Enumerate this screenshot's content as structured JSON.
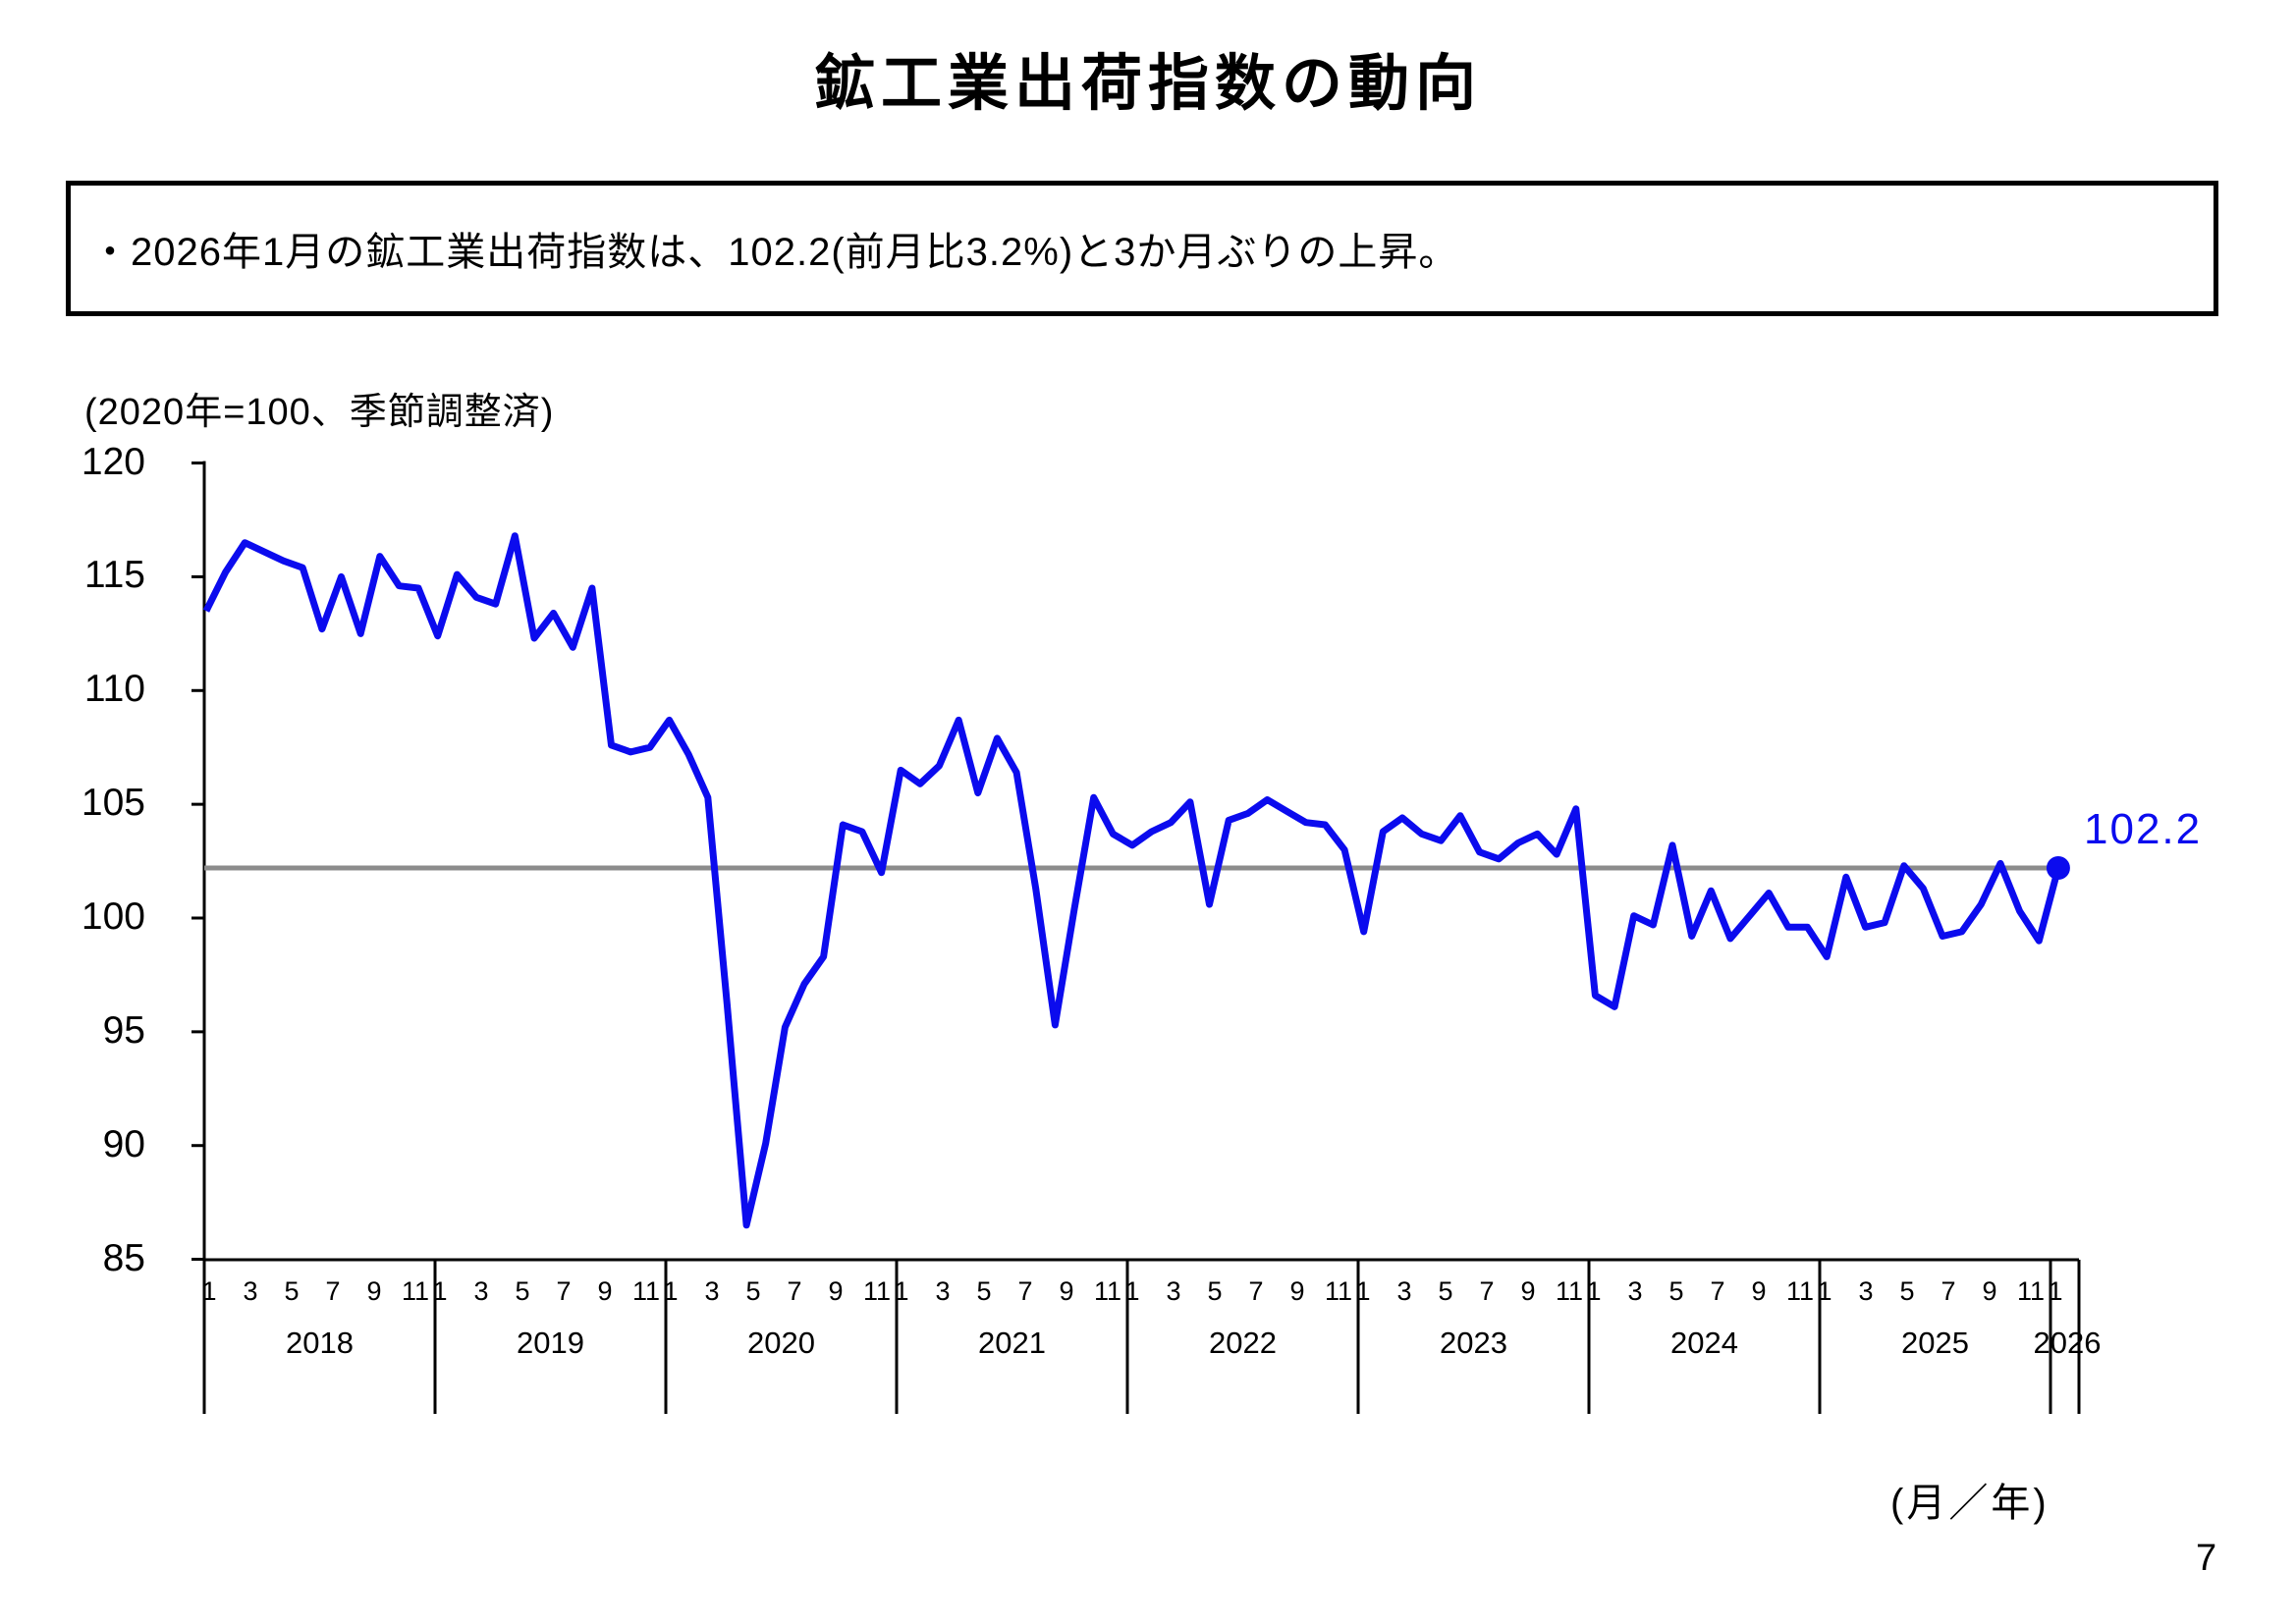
{
  "page": {
    "title": "鉱工業出荷指数の動向",
    "page_number": "7"
  },
  "summary_box": {
    "text": "・2026年1月の鉱工業出荷指数は、102.2(前月比3.2%)と3か月ぶりの上昇。"
  },
  "chart_data": {
    "type": "line",
    "unit_note": "(2020年=100、季節調整済)",
    "x_axis_note": "(月／年)",
    "ylim": [
      85,
      120
    ],
    "yticks": [
      120,
      115,
      110,
      105,
      100,
      95,
      90,
      85
    ],
    "grid": false,
    "month_tick_labels": [
      "1",
      "3",
      "5",
      "7",
      "9",
      "11"
    ],
    "reference_line_value": 102.2,
    "line_color": "#0b0bee",
    "reference_line_color": "#8c8c8c",
    "annotation": {
      "label": "102.2",
      "color": "#0b0bee"
    },
    "series": [
      {
        "year": "2018",
        "values": [
          113.5,
          115.2,
          116.5,
          116.1,
          115.7,
          115.4,
          112.7,
          115.0,
          112.5,
          115.9,
          114.6,
          114.5
        ]
      },
      {
        "year": "2019",
        "values": [
          112.4,
          115.1,
          114.1,
          113.8,
          116.8,
          112.3,
          113.4,
          111.9,
          114.5,
          107.6,
          107.3,
          107.5
        ]
      },
      {
        "year": "2020",
        "values": [
          108.7,
          107.2,
          105.3,
          96.2,
          86.5,
          90.1,
          95.2,
          97.1,
          98.3,
          104.1,
          103.8,
          102.0
        ]
      },
      {
        "year": "2021",
        "values": [
          106.5,
          105.9,
          106.7,
          108.7,
          105.5,
          107.9,
          106.4,
          101.3,
          95.3,
          100.4,
          105.3,
          103.7
        ]
      },
      {
        "year": "2022",
        "values": [
          103.2,
          103.8,
          104.2,
          105.1,
          100.6,
          104.3,
          104.6,
          105.2,
          104.7,
          104.2,
          104.1,
          103.0
        ]
      },
      {
        "year": "2023",
        "values": [
          99.4,
          103.8,
          104.4,
          103.7,
          103.4,
          104.5,
          102.9,
          102.6,
          103.3,
          103.7,
          102.8,
          104.8
        ]
      },
      {
        "year": "2024",
        "values": [
          96.6,
          96.1,
          100.1,
          99.7,
          103.2,
          99.2,
          101.2,
          99.1,
          100.1,
          101.1,
          99.6,
          99.6
        ]
      },
      {
        "year": "2025",
        "values": [
          98.3,
          101.8,
          99.6,
          99.8,
          102.3,
          101.3,
          99.2,
          99.4,
          100.6,
          102.4,
          100.3,
          99.0
        ]
      },
      {
        "year": "2026",
        "values": [
          102.2
        ]
      }
    ],
    "last_point": {
      "month_year": "2026-01",
      "value": 102.2
    }
  }
}
